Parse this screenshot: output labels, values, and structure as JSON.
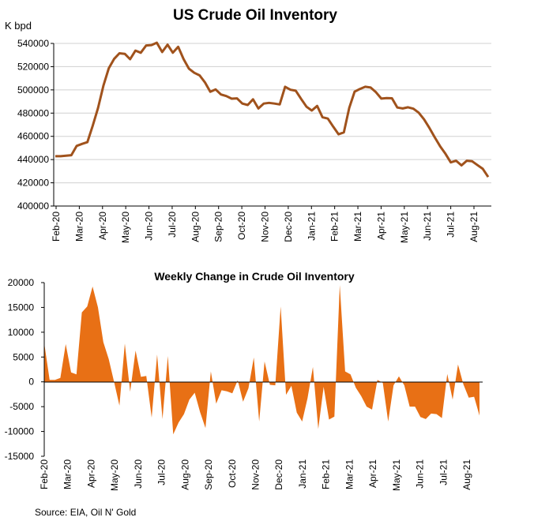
{
  "source": "Source: EIA, Oil N' Gold",
  "colors": {
    "line": "#A0521C",
    "area": "#E87015",
    "grid": "#d0d0d0",
    "axis": "#000000"
  },
  "chart_data": [
    {
      "type": "line",
      "title": "US Crude Oil Inventory",
      "ylabel": "K bpd",
      "ylim": [
        400000,
        540000
      ],
      "yticks": [
        400000,
        420000,
        440000,
        460000,
        480000,
        500000,
        520000,
        540000
      ],
      "ytick_labels": [
        "400000",
        "420000",
        "440000",
        "460000",
        "480000",
        "500000",
        "520000",
        "540000"
      ],
      "x_tick_labels": [
        "Feb-20",
        "Mar-20",
        "Apr-20",
        "May-20",
        "Jun-20",
        "Jul-20",
        "Aug-20",
        "Sep-20",
        "Oct-20",
        "Nov-20",
        "Dec-20",
        "Jan-21",
        "Feb-21",
        "Mar-21",
        "Apr-21",
        "May-21",
        "Jun-21",
        "Jul-21",
        "Aug-21"
      ],
      "grid": true,
      "series": [
        {
          "values": [
            442900,
            442900,
            443300,
            443800,
            451800,
            453500,
            455000,
            469200,
            484400,
            503600,
            518600,
            526600,
            531500,
            531000,
            526400,
            533800,
            532000,
            538200,
            538600,
            540600,
            532600,
            538900,
            532000,
            537100,
            526500,
            518300,
            514700,
            512500,
            506500,
            498400,
            500400,
            496000,
            494700,
            492400,
            492700,
            488200,
            487000,
            491900,
            484000,
            488200,
            488800,
            488200,
            487500,
            502700,
            500100,
            499300,
            492200,
            485500,
            482200,
            486200,
            476400,
            475300,
            468400,
            461800,
            463400,
            484500,
            498500,
            500800,
            502700,
            502000,
            498000,
            492500,
            493000,
            492800,
            484800,
            484000,
            485000,
            483800,
            480400,
            474600,
            467200,
            459200,
            451500,
            445000,
            437600,
            439000,
            435000,
            439000,
            438500,
            435200,
            432000,
            425000
          ]
        }
      ]
    },
    {
      "type": "area",
      "title": "Weekly Change in Crude Oil Inventory",
      "ylim": [
        -15000,
        20000
      ],
      "yticks": [
        -15000,
        -10000,
        -5000,
        0,
        5000,
        10000,
        15000,
        20000
      ],
      "ytick_labels": [
        "-15000",
        "-10000",
        "-5000",
        "0",
        "5000",
        "10000",
        "15000",
        "20000"
      ],
      "x_tick_labels": [
        "Feb-20",
        "Mar-20",
        "Apr-20",
        "May-20",
        "Jun-20",
        "Jul-20",
        "Aug-20",
        "Sep-20",
        "Oct-20",
        "Nov-20",
        "Dec-20",
        "Jan-21",
        "Feb-21",
        "Mar-21",
        "Apr-21",
        "May-21",
        "Jun-21",
        "Jul-21",
        "Aug-21"
      ],
      "grid": false,
      "series": [
        {
          "values": [
            7800,
            400,
            400,
            800,
            7600,
            1900,
            1500,
            14000,
            15200,
            19200,
            15000,
            8000,
            4600,
            0,
            -4800,
            7700,
            -2000,
            6300,
            1000,
            1200,
            -7200,
            5500,
            -7500,
            5200,
            -10600,
            -8200,
            -6500,
            -3600,
            -2200,
            -6100,
            -9300,
            2100,
            -4400,
            -1700,
            -1900,
            -2300,
            300,
            -4000,
            -1300,
            4900,
            -8000,
            4100,
            -600,
            -700,
            15200,
            -2600,
            -800,
            -6200,
            -8000,
            -3300,
            3000,
            -9500,
            -1000,
            -7600,
            -7000,
            19500,
            2100,
            1500,
            -1200,
            -2900,
            -5000,
            -5600,
            400,
            -200,
            -8000,
            -700,
            1100,
            -700,
            -5000,
            -5000,
            -7100,
            -7500,
            -6400,
            -6500,
            -7300,
            1600,
            -3600,
            3500,
            -500,
            -3200,
            -3000,
            -6800
          ]
        }
      ]
    }
  ]
}
